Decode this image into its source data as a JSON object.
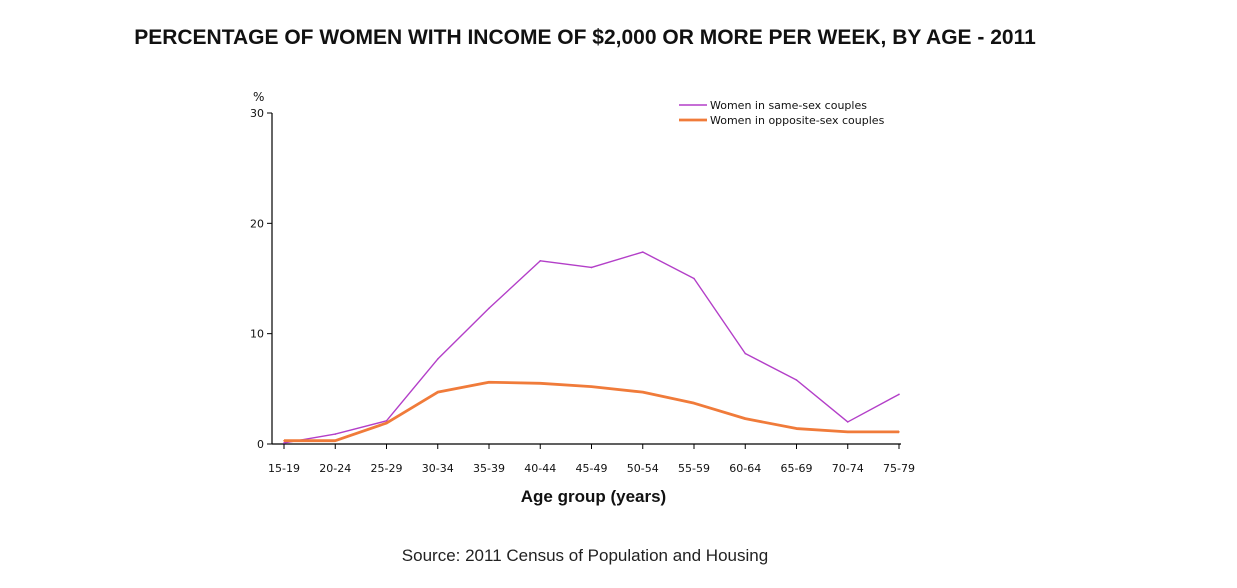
{
  "chart_data": {
    "type": "line",
    "title": "PERCENTAGE OF WOMEN WITH INCOME OF $2,000 OR MORE PER WEEK, BY AGE - 2011",
    "xlabel": "Age group (years)",
    "ylabel": "%",
    "ylim": [
      0,
      30
    ],
    "yticks": [
      0,
      10,
      20,
      30
    ],
    "grid": false,
    "legend_position": "top-right",
    "categories": [
      "15-19",
      "20-24",
      "25-29",
      "30-34",
      "35-39",
      "40-44",
      "45-49",
      "50-54",
      "55-59",
      "60-64",
      "65-69",
      "70-74",
      "75-79"
    ],
    "series": [
      {
        "name": "Women in same-sex couples",
        "color": "#b33fc8",
        "values": [
          0.1,
          0.9,
          2.1,
          7.7,
          12.3,
          16.6,
          16.0,
          17.4,
          15.0,
          8.2,
          5.8,
          2.0,
          4.5
        ]
      },
      {
        "name": "Women in opposite-sex couples",
        "color": "#f07b3a",
        "values": [
          0.3,
          0.3,
          1.9,
          4.7,
          5.6,
          5.5,
          5.2,
          4.7,
          3.7,
          2.3,
          1.4,
          1.1,
          1.1
        ]
      }
    ]
  },
  "source": "Source: 2011 Census of Population and Housing"
}
